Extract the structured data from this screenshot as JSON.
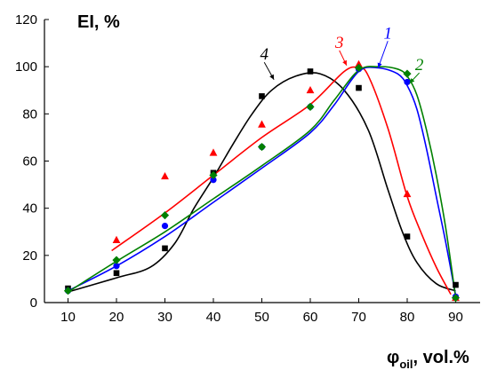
{
  "chart_data": {
    "type": "scatter",
    "ylabel": "EI, %",
    "xlabel_main": "φ",
    "xlabel_sub": "oil",
    "xlabel_tail": ", vol.%",
    "x_ticks": [
      10,
      20,
      30,
      40,
      50,
      60,
      70,
      80,
      90
    ],
    "y_ticks": [
      0,
      20,
      40,
      60,
      80,
      100,
      120
    ],
    "xlim": [
      10,
      90
    ],
    "ylim": [
      0,
      120
    ],
    "grid": false,
    "legend": "none (curves labeled inline)",
    "series": [
      {
        "name": "1",
        "color": "#0000ff",
        "marker": "circle",
        "points": [
          [
            10,
            5
          ],
          [
            20,
            15.5
          ],
          [
            30,
            32.5
          ],
          [
            40,
            52
          ],
          [
            50,
            66
          ],
          [
            60,
            83
          ],
          [
            70,
            99
          ],
          [
            80,
            93.5
          ],
          [
            90,
            2.5
          ]
        ],
        "curve": [
          [
            10,
            5
          ],
          [
            20,
            15.5
          ],
          [
            30,
            28
          ],
          [
            40,
            42.5
          ],
          [
            50,
            57
          ],
          [
            60,
            72
          ],
          [
            65,
            84
          ],
          [
            70,
            98
          ],
          [
            74,
            99.5
          ],
          [
            78,
            97
          ],
          [
            80,
            92
          ],
          [
            82,
            82
          ],
          [
            84,
            65
          ],
          [
            86,
            45
          ],
          [
            88,
            25
          ],
          [
            90,
            3
          ]
        ]
      },
      {
        "name": "2",
        "color": "#008000",
        "marker": "diamond",
        "points": [
          [
            10,
            5
          ],
          [
            20,
            18
          ],
          [
            30,
            37
          ],
          [
            40,
            54
          ],
          [
            50,
            66
          ],
          [
            60,
            83
          ],
          [
            70,
            99.5
          ],
          [
            80,
            97
          ],
          [
            90,
            2
          ]
        ],
        "curve": [
          [
            10,
            4.5
          ],
          [
            20,
            17.5
          ],
          [
            30,
            30
          ],
          [
            40,
            44
          ],
          [
            50,
            58
          ],
          [
            60,
            73
          ],
          [
            65,
            86
          ],
          [
            70,
            98.5
          ],
          [
            74,
            100
          ],
          [
            78,
            99
          ],
          [
            80,
            96
          ],
          [
            82,
            88
          ],
          [
            84,
            73
          ],
          [
            86,
            54
          ],
          [
            88,
            31
          ],
          [
            90,
            2
          ]
        ]
      },
      {
        "name": "3",
        "color": "#ff0000",
        "marker": "triangle",
        "points": [
          [
            20,
            26.5
          ],
          [
            30,
            53.5
          ],
          [
            40,
            63.5
          ],
          [
            50,
            75.5
          ],
          [
            60,
            90
          ],
          [
            70,
            101
          ],
          [
            80,
            46
          ],
          [
            90,
            2
          ]
        ],
        "curve": [
          [
            19,
            22
          ],
          [
            30,
            38
          ],
          [
            40,
            54
          ],
          [
            50,
            70
          ],
          [
            60,
            84
          ],
          [
            67,
            98
          ],
          [
            70,
            99.5
          ],
          [
            72,
            96
          ],
          [
            76,
            74
          ],
          [
            80,
            45
          ],
          [
            83,
            29
          ],
          [
            86,
            15
          ],
          [
            89,
            3.5
          ]
        ]
      },
      {
        "name": "4",
        "color": "#000000",
        "marker": "square",
        "points": [
          [
            10,
            6
          ],
          [
            20,
            12.5
          ],
          [
            30,
            23
          ],
          [
            40,
            55
          ],
          [
            50,
            87.5
          ],
          [
            60,
            98
          ],
          [
            70,
            91
          ],
          [
            80,
            28
          ],
          [
            90,
            7.5
          ]
        ],
        "curve": [
          [
            10,
            4.5
          ],
          [
            20,
            10.5
          ],
          [
            27,
            15
          ],
          [
            32,
            25
          ],
          [
            36,
            40
          ],
          [
            40,
            53
          ],
          [
            44,
            67
          ],
          [
            48,
            80
          ],
          [
            52,
            90
          ],
          [
            57,
            96
          ],
          [
            62,
            97
          ],
          [
            67,
            90
          ],
          [
            72,
            73
          ],
          [
            76,
            48
          ],
          [
            79,
            30
          ],
          [
            82,
            17
          ],
          [
            86,
            8
          ],
          [
            90,
            5
          ]
        ]
      }
    ],
    "labels": [
      {
        "text": "1",
        "series": "1",
        "at": [
          76,
          112
        ],
        "arrow_to": [
          74,
          99.5
        ]
      },
      {
        "text": "2",
        "series": "2",
        "at": [
          82.5,
          98.5
        ],
        "arrow_to": [
          80.5,
          93
        ]
      },
      {
        "text": "3",
        "series": "3",
        "at": [
          66,
          108
        ],
        "arrow_to": [
          67.5,
          100.5
        ]
      },
      {
        "text": "4",
        "series": "4",
        "at": [
          50.5,
          103
        ],
        "arrow_to": [
          52.5,
          94.5
        ]
      }
    ]
  }
}
